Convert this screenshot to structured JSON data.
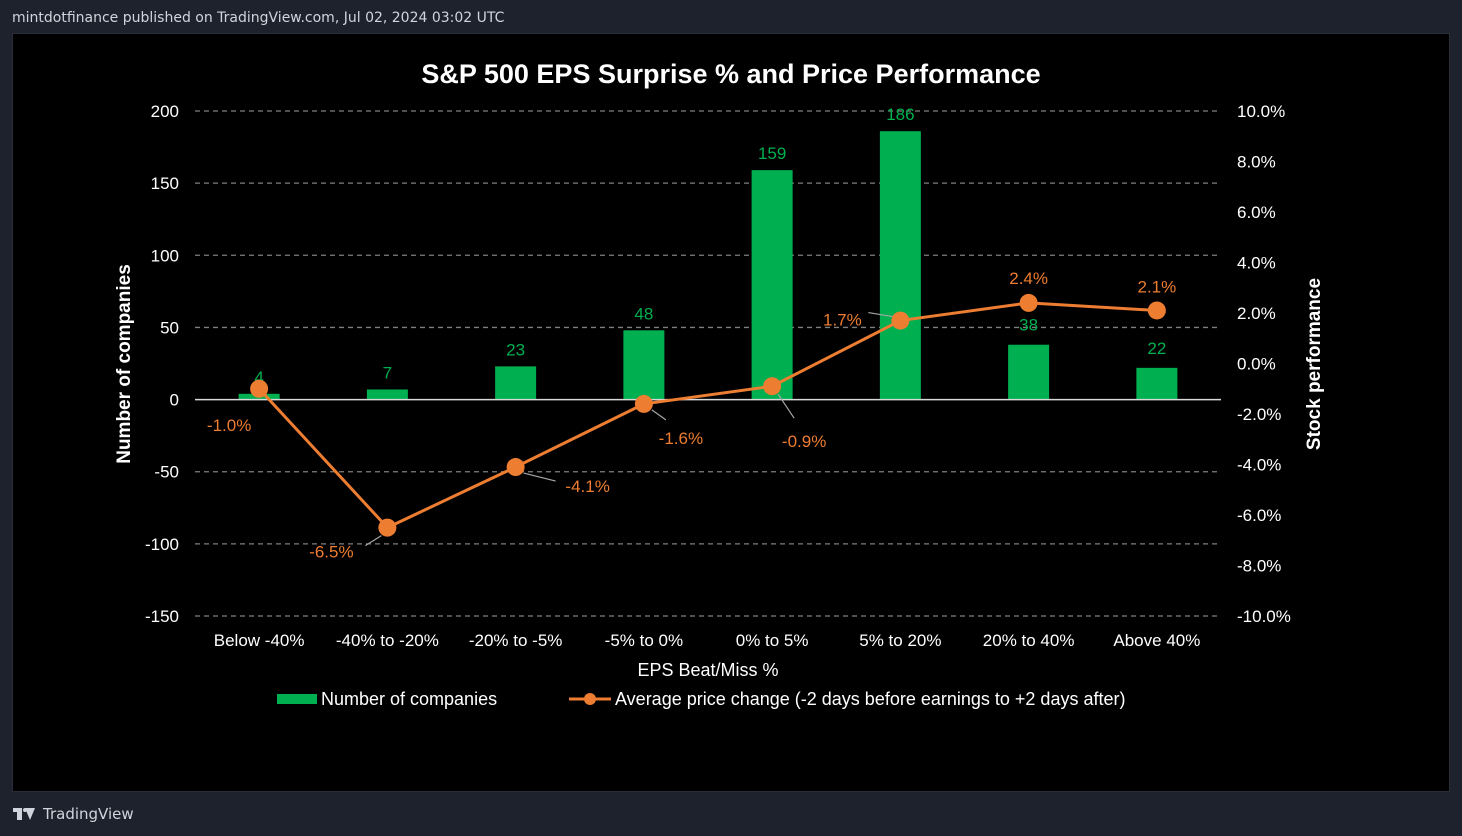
{
  "header": {
    "text": "mintdotfinance published on TradingView.com, Jul 02, 2024 03:02 UTC"
  },
  "footer": {
    "brand": "TradingView"
  },
  "colors": {
    "bar": "#00b050",
    "line": "#ed7d31",
    "background": "#000000",
    "text": "#ffffff",
    "grid": "#7f7f7f"
  },
  "chart_data": {
    "type": "bar+line",
    "title": "S&P 500 EPS Surprise % and Price Performance",
    "xlabel": "EPS Beat/Miss %",
    "ylabel_left": "Number of companies",
    "ylabel_right": "Stock performance",
    "categories": [
      "Below -40%",
      "-40% to -20%",
      "-20% to -5%",
      "-5% to 0%",
      "0% to 5%",
      "5% to 20%",
      "20% to 40%",
      "Above 40%"
    ],
    "ylim_left": [
      -150,
      200
    ],
    "yticks_left": [
      "200",
      "150",
      "100",
      "50",
      "0",
      "-50",
      "-100",
      "-150"
    ],
    "ylim_right": [
      -10,
      10
    ],
    "yticks_right": [
      "10.0%",
      "8.0%",
      "6.0%",
      "4.0%",
      "2.0%",
      "0.0%",
      "-2.0%",
      "-4.0%",
      "-6.0%",
      "-8.0%",
      "-10.0%"
    ],
    "series": [
      {
        "name": "Number of companies",
        "type": "bar",
        "axis": "left",
        "values": [
          4,
          7,
          23,
          48,
          159,
          186,
          38,
          22
        ],
        "labels": [
          "4",
          "7",
          "23",
          "48",
          "159",
          "186",
          "38",
          "22"
        ]
      },
      {
        "name": "Average price change (-2 days before earnings to +2 days after)",
        "type": "line",
        "axis": "right",
        "values": [
          -1.0,
          -6.5,
          -4.1,
          -1.6,
          -0.9,
          1.7,
          2.4,
          2.1
        ],
        "labels": [
          "-1.0%",
          "-6.5%",
          "-4.1%",
          "-1.6%",
          "-0.9%",
          "1.7%",
          "2.4%",
          "2.1%"
        ]
      }
    ],
    "legend": [
      "Number of companies",
      "Average price change (-2 days before earnings to +2 days after)"
    ],
    "grid": true
  }
}
